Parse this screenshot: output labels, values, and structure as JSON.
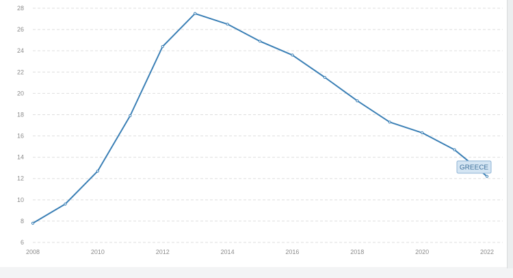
{
  "chart_data": {
    "type": "line",
    "x": [
      2008,
      2009,
      2010,
      2011,
      2012,
      2013,
      2014,
      2015,
      2016,
      2017,
      2018,
      2019,
      2020,
      2021,
      2022
    ],
    "series": [
      {
        "name": "GREECE",
        "values": [
          7.8,
          9.6,
          12.7,
          17.9,
          24.4,
          27.5,
          26.5,
          24.9,
          23.6,
          21.5,
          19.3,
          17.3,
          16.3,
          14.7,
          12.2
        ]
      }
    ],
    "xticks": [
      2008,
      2010,
      2012,
      2014,
      2016,
      2018,
      2020,
      2022
    ],
    "yticks": [
      6,
      8,
      10,
      12,
      14,
      16,
      18,
      20,
      22,
      24,
      26,
      28
    ],
    "xlim": [
      2008,
      2022
    ],
    "ylim": [
      6,
      28
    ],
    "grid": true,
    "grid_style": "dashed horizontal",
    "title": "",
    "xlabel": "",
    "ylabel": "",
    "series_label": "GREECE",
    "colors": {
      "line": "#3a7fb5",
      "grid": "#dedede",
      "tick_text": "#8a8a8a",
      "badge_fill": "#d4e5f3",
      "badge_border": "#8fb4d6",
      "badge_text": "#3d6f99"
    }
  }
}
